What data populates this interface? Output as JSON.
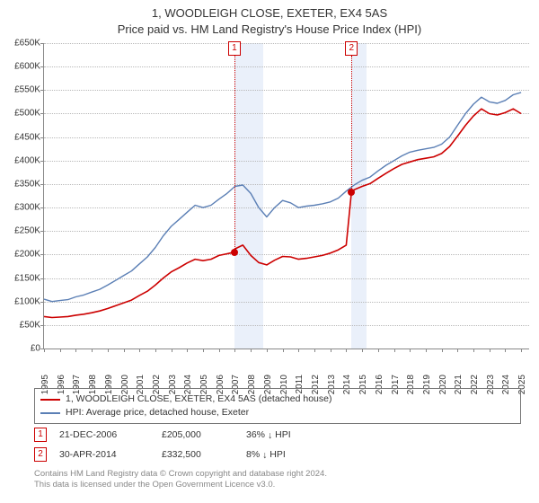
{
  "title": {
    "line1": "1, WOODLEIGH CLOSE, EXETER, EX4 5AS",
    "line2": "Price paid vs. HM Land Registry's House Price Index (HPI)"
  },
  "chart": {
    "type": "line",
    "background_color": "#ffffff",
    "grid_color": "#b8b8b8",
    "axis_color": "#888888",
    "xlim": [
      1995,
      2025.5
    ],
    "ylim": [
      0,
      650
    ],
    "ytick_step": 50,
    "ytick_labels": [
      "£0",
      "£50K",
      "£100K",
      "£150K",
      "£200K",
      "£250K",
      "£300K",
      "£350K",
      "£400K",
      "£450K",
      "£500K",
      "£550K",
      "£600K",
      "£650K"
    ],
    "xticks": [
      1995,
      1996,
      1997,
      1998,
      1999,
      2000,
      2001,
      2002,
      2003,
      2004,
      2005,
      2006,
      2007,
      2008,
      2009,
      2010,
      2011,
      2012,
      2013,
      2014,
      2015,
      2016,
      2017,
      2018,
      2019,
      2020,
      2021,
      2022,
      2023,
      2024,
      2025
    ],
    "series": [
      {
        "id": "hpi",
        "label": "HPI: Average price, detached house, Exeter",
        "color": "#5b7fb5",
        "line_width": 1.4,
        "data": [
          [
            1995,
            105
          ],
          [
            1995.5,
            100
          ],
          [
            1996,
            102
          ],
          [
            1996.5,
            104
          ],
          [
            1997,
            110
          ],
          [
            1997.5,
            114
          ],
          [
            1998,
            120
          ],
          [
            1998.5,
            126
          ],
          [
            1999,
            135
          ],
          [
            1999.5,
            145
          ],
          [
            2000,
            155
          ],
          [
            2000.5,
            165
          ],
          [
            2001,
            180
          ],
          [
            2001.5,
            195
          ],
          [
            2002,
            215
          ],
          [
            2002.5,
            240
          ],
          [
            2003,
            260
          ],
          [
            2003.5,
            275
          ],
          [
            2004,
            290
          ],
          [
            2004.5,
            305
          ],
          [
            2005,
            300
          ],
          [
            2005.5,
            305
          ],
          [
            2006,
            318
          ],
          [
            2006.5,
            330
          ],
          [
            2007,
            345
          ],
          [
            2007.5,
            348
          ],
          [
            2008,
            330
          ],
          [
            2008.5,
            300
          ],
          [
            2009,
            280
          ],
          [
            2009.5,
            300
          ],
          [
            2010,
            315
          ],
          [
            2010.5,
            310
          ],
          [
            2011,
            300
          ],
          [
            2011.5,
            303
          ],
          [
            2012,
            305
          ],
          [
            2012.5,
            308
          ],
          [
            2013,
            312
          ],
          [
            2013.5,
            320
          ],
          [
            2014,
            335
          ],
          [
            2014.5,
            348
          ],
          [
            2015,
            358
          ],
          [
            2015.5,
            365
          ],
          [
            2016,
            378
          ],
          [
            2016.5,
            390
          ],
          [
            2017,
            400
          ],
          [
            2017.5,
            410
          ],
          [
            2018,
            418
          ],
          [
            2018.5,
            422
          ],
          [
            2019,
            425
          ],
          [
            2019.5,
            428
          ],
          [
            2020,
            435
          ],
          [
            2020.5,
            450
          ],
          [
            2021,
            475
          ],
          [
            2021.5,
            500
          ],
          [
            2022,
            520
          ],
          [
            2022.5,
            535
          ],
          [
            2023,
            525
          ],
          [
            2023.5,
            522
          ],
          [
            2024,
            528
          ],
          [
            2024.5,
            540
          ],
          [
            2025,
            545
          ]
        ]
      },
      {
        "id": "price_paid",
        "label": "1, WOODLEIGH CLOSE, EXETER, EX4 5AS (detached house)",
        "color": "#cc0000",
        "line_width": 1.6,
        "data": [
          [
            1995,
            68
          ],
          [
            1995.5,
            66
          ],
          [
            1996,
            67
          ],
          [
            1996.5,
            68
          ],
          [
            1997,
            71
          ],
          [
            1997.5,
            73
          ],
          [
            1998,
            76
          ],
          [
            1998.5,
            80
          ],
          [
            1999,
            85
          ],
          [
            1999.5,
            91
          ],
          [
            2000,
            97
          ],
          [
            2000.5,
            103
          ],
          [
            2001,
            113
          ],
          [
            2001.5,
            122
          ],
          [
            2002,
            135
          ],
          [
            2002.5,
            150
          ],
          [
            2003,
            163
          ],
          [
            2003.5,
            172
          ],
          [
            2004,
            182
          ],
          [
            2004.5,
            190
          ],
          [
            2005,
            187
          ],
          [
            2005.5,
            190
          ],
          [
            2006,
            198
          ],
          [
            2006.97,
            205
          ],
          [
            2007,
            212
          ],
          [
            2007.5,
            220
          ],
          [
            2008,
            198
          ],
          [
            2008.5,
            183
          ],
          [
            2009,
            178
          ],
          [
            2009.5,
            188
          ],
          [
            2010,
            196
          ],
          [
            2010.5,
            195
          ],
          [
            2011,
            190
          ],
          [
            2011.5,
            192
          ],
          [
            2012,
            195
          ],
          [
            2012.5,
            198
          ],
          [
            2013,
            203
          ],
          [
            2013.5,
            210
          ],
          [
            2014,
            220
          ],
          [
            2014.33,
            332.5
          ],
          [
            2014.5,
            338
          ],
          [
            2015,
            345
          ],
          [
            2015.5,
            351
          ],
          [
            2016,
            362
          ],
          [
            2016.5,
            373
          ],
          [
            2017,
            383
          ],
          [
            2017.5,
            392
          ],
          [
            2018,
            397
          ],
          [
            2018.5,
            402
          ],
          [
            2019,
            405
          ],
          [
            2019.5,
            408
          ],
          [
            2020,
            415
          ],
          [
            2020.5,
            430
          ],
          [
            2021,
            452
          ],
          [
            2021.5,
            475
          ],
          [
            2022,
            495
          ],
          [
            2022.5,
            510
          ],
          [
            2023,
            500
          ],
          [
            2023.5,
            497
          ],
          [
            2024,
            502
          ],
          [
            2024.5,
            510
          ],
          [
            2025,
            500
          ]
        ]
      }
    ],
    "shaded_periods": [
      {
        "from": 2006.97,
        "to": 2008.8,
        "color": "#eaf0fa"
      },
      {
        "from": 2014.33,
        "to": 2015.3,
        "color": "#eaf0fa"
      }
    ],
    "sale_markers": [
      {
        "n": "1",
        "x": 2006.97,
        "y": 205
      },
      {
        "n": "2",
        "x": 2014.33,
        "y": 332.5
      }
    ]
  },
  "legend": {
    "items": [
      {
        "color": "#cc0000",
        "label": "1, WOODLEIGH CLOSE, EXETER, EX4 5AS (detached house)"
      },
      {
        "color": "#5b7fb5",
        "label": "HPI: Average price, detached house, Exeter"
      }
    ]
  },
  "sales": [
    {
      "n": "1",
      "date": "21-DEC-2006",
      "price": "£205,000",
      "pct": "36%",
      "dir": "↓",
      "suffix": "HPI"
    },
    {
      "n": "2",
      "date": "30-APR-2014",
      "price": "£332,500",
      "pct": "8%",
      "dir": "↓",
      "suffix": "HPI"
    }
  ],
  "footer": {
    "line1": "Contains HM Land Registry data © Crown copyright and database right 2024.",
    "line2": "This data is licensed under the Open Government Licence v3.0."
  }
}
